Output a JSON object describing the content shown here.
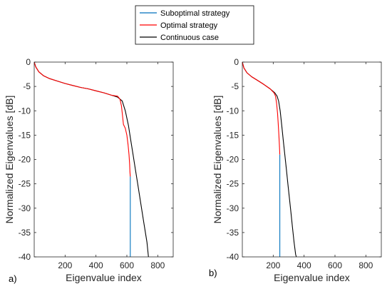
{
  "legend": {
    "entries": [
      {
        "name": "Suboptimal strategy",
        "color": "#0072BD"
      },
      {
        "name": "Optimal strategy",
        "color": "#FF0000"
      },
      {
        "name": "Continuous case",
        "color": "#000000"
      }
    ],
    "placement": "top-center"
  },
  "chart_data": [
    {
      "type": "line",
      "panel_label": "a)",
      "xlabel": "Eigenvalue index",
      "ylabel": "Normalized Eigenvalues [dB]",
      "xlim": [
        0,
        900
      ],
      "ylim": [
        -40,
        0
      ],
      "xticks": [
        200,
        400,
        600,
        800
      ],
      "yticks": [
        0,
        -5,
        -10,
        -15,
        -20,
        -25,
        -30,
        -35,
        -40
      ],
      "grid": false,
      "series": [
        {
          "name": "Continuous case",
          "color": "#000000",
          "x": [
            0,
            10,
            30,
            60,
            100,
            150,
            200,
            250,
            300,
            350,
            400,
            450,
            500,
            540,
            570,
            590,
            610,
            625,
            640,
            655,
            670,
            690,
            710,
            730,
            740
          ],
          "y": [
            0,
            -1.0,
            -2.0,
            -2.8,
            -3.4,
            -3.9,
            -4.4,
            -4.8,
            -5.2,
            -5.5,
            -5.9,
            -6.3,
            -6.8,
            -7.2,
            -8.0,
            -10.0,
            -13.0,
            -16.0,
            -19.0,
            -22.0,
            -25.0,
            -29.0,
            -33.0,
            -37.0,
            -40.0
          ]
        },
        {
          "name": "Optimal strategy",
          "color": "#FF0000",
          "x": [
            0,
            10,
            30,
            60,
            100,
            150,
            200,
            250,
            300,
            350,
            400,
            450,
            500,
            540,
            555,
            565,
            572,
            578,
            590,
            600,
            608,
            614,
            618,
            620,
            622
          ],
          "y": [
            0,
            -1.0,
            -2.0,
            -2.8,
            -3.4,
            -3.9,
            -4.4,
            -4.8,
            -5.2,
            -5.5,
            -5.9,
            -6.3,
            -6.8,
            -7.0,
            -7.6,
            -9.0,
            -11.0,
            -12.8,
            -13.6,
            -15.0,
            -17.0,
            -19.0,
            -21.0,
            -22.5,
            -23.5
          ]
        },
        {
          "name": "Suboptimal strategy",
          "color": "#0072BD",
          "x": [
            622,
            622
          ],
          "y": [
            -23.5,
            -40
          ]
        }
      ]
    },
    {
      "type": "line",
      "panel_label": "b)",
      "xlabel": "Eigenvalue index",
      "ylabel": "Normalized Eigenvalues [dB]",
      "xlim": [
        0,
        900
      ],
      "ylim": [
        -40,
        0
      ],
      "xticks": [
        200,
        400,
        600,
        800
      ],
      "yticks": [
        0,
        -5,
        -10,
        -15,
        -20,
        -25,
        -30,
        -35,
        -40
      ],
      "grid": false,
      "series": [
        {
          "name": "Continuous case",
          "color": "#000000",
          "x": [
            0,
            10,
            30,
            60,
            100,
            140,
            180,
            210,
            225,
            235,
            245,
            255,
            265,
            275,
            285,
            295,
            305,
            315,
            325,
            335,
            345,
            350
          ],
          "y": [
            0,
            -1.2,
            -2.2,
            -3.0,
            -3.8,
            -4.6,
            -5.5,
            -6.3,
            -7.0,
            -8.0,
            -10.0,
            -13.0,
            -16.0,
            -19.0,
            -22.0,
            -25.0,
            -28.0,
            -31.0,
            -34.0,
            -37.0,
            -39.5,
            -40.0
          ]
        },
        {
          "name": "Optimal strategy",
          "color": "#FF0000",
          "x": [
            0,
            10,
            30,
            60,
            100,
            140,
            180,
            205,
            215,
            222,
            228,
            232,
            236,
            240,
            243
          ],
          "y": [
            0,
            -1.2,
            -2.2,
            -3.0,
            -3.8,
            -4.6,
            -5.5,
            -6.3,
            -7.0,
            -8.5,
            -10.5,
            -12.5,
            -14.5,
            -17.0,
            -19.0
          ]
        },
        {
          "name": "Suboptimal strategy",
          "color": "#0072BD",
          "x": [
            243,
            243
          ],
          "y": [
            -19.0,
            -40
          ]
        }
      ]
    }
  ]
}
